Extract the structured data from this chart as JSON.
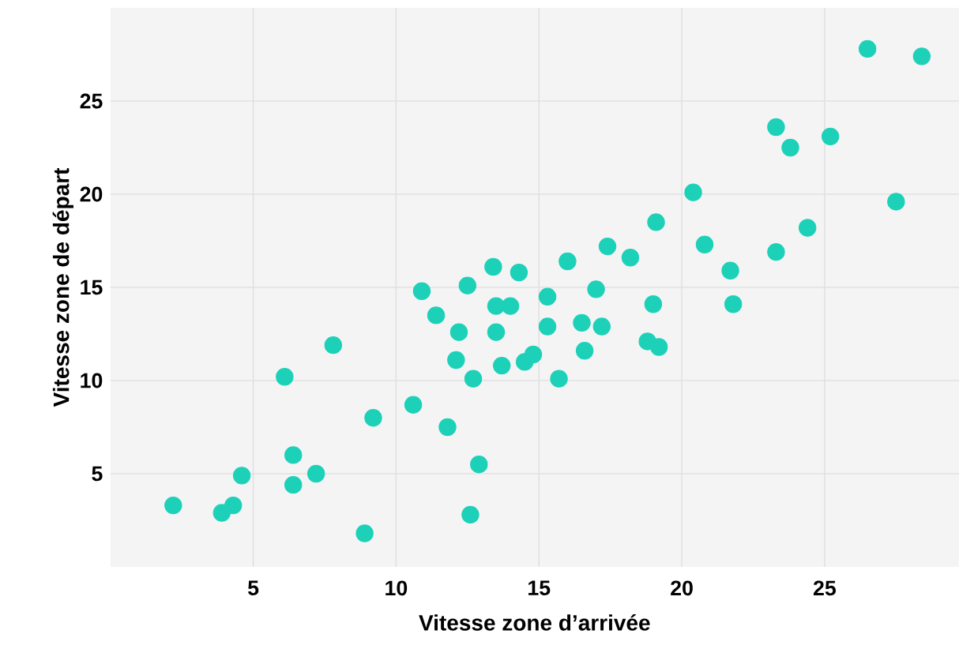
{
  "chart_data": {
    "type": "scatter",
    "xlabel": "Vitesse zone d’arrivée",
    "ylabel": "Vitesse zone de départ",
    "color": "#1dd1b9",
    "marker": "circle",
    "grid": true,
    "xlim": [
      0,
      29.7
    ],
    "ylim": [
      0,
      30
    ],
    "xticks": [
      5,
      10,
      15,
      20,
      25
    ],
    "yticks": [
      5,
      10,
      15,
      20,
      25
    ],
    "x": [
      2.2,
      3.9,
      4.3,
      4.6,
      6.1,
      6.4,
      6.4,
      7.2,
      7.8,
      9.2,
      8.9,
      10.6,
      11.8,
      12.9,
      12.6,
      10.9,
      11.4,
      12.5,
      13.4,
      14.3,
      13.5,
      14.0,
      12.2,
      13.5,
      12.1,
      13.7,
      12.7,
      14.5,
      14.8,
      15.3,
      15.3,
      15.7,
      16.0,
      16.6,
      16.5,
      17.0,
      17.2,
      17.4,
      18.2,
      18.8,
      19.2,
      19.0,
      19.1,
      20.4,
      20.8,
      21.7,
      21.8,
      23.3,
      23.8,
      23.3,
      24.4,
      25.2,
      26.5,
      28.4,
      27.5
    ],
    "values": [
      3.3,
      2.9,
      3.3,
      4.9,
      10.2,
      6.0,
      4.4,
      5.0,
      11.9,
      8.0,
      1.8,
      8.7,
      7.5,
      5.5,
      2.8,
      14.8,
      13.5,
      15.1,
      16.1,
      15.8,
      14.0,
      14.0,
      12.6,
      12.6,
      11.1,
      10.8,
      10.1,
      11.0,
      11.4,
      14.5,
      12.9,
      10.1,
      16.4,
      11.6,
      13.1,
      14.9,
      12.9,
      17.2,
      16.6,
      12.1,
      11.8,
      14.1,
      18.5,
      20.1,
      17.3,
      15.9,
      14.1,
      23.6,
      22.5,
      16.9,
      18.2,
      23.1,
      27.8,
      27.4,
      19.6
    ]
  }
}
